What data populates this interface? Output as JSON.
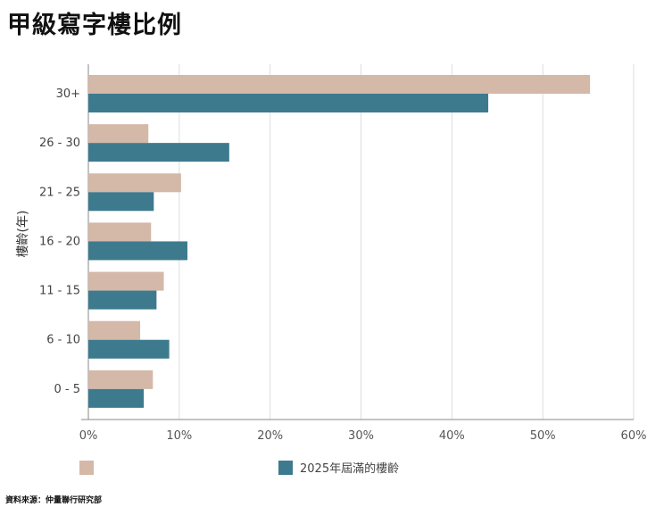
{
  "chart_data": {
    "type": "bar",
    "orientation": "horizontal",
    "title": "甲級寫字樓比例",
    "ylabel": "樓齡(年)",
    "xlabel": "",
    "categories": [
      "30+",
      "26 - 30",
      "21 - 25",
      "16 - 20",
      "11 - 15",
      "6 - 10",
      "0 - 5"
    ],
    "series": [
      {
        "name": "",
        "color": "#d4b8a8",
        "values": [
          55.2,
          6.6,
          10.2,
          6.9,
          8.3,
          5.7,
          7.1
        ]
      },
      {
        "name": "2025年屆滿的樓齡",
        "color": "#3e7a8e",
        "values": [
          44.0,
          15.5,
          7.2,
          10.9,
          7.5,
          8.9,
          6.1
        ]
      }
    ],
    "xlim": [
      0,
      60
    ],
    "xticks": [
      "0%",
      "10%",
      "20%",
      "30%",
      "40%",
      "50%",
      "60%"
    ],
    "grid": true,
    "legend_position": "bottom"
  },
  "source": "資料來源：仲量聯行研究部"
}
